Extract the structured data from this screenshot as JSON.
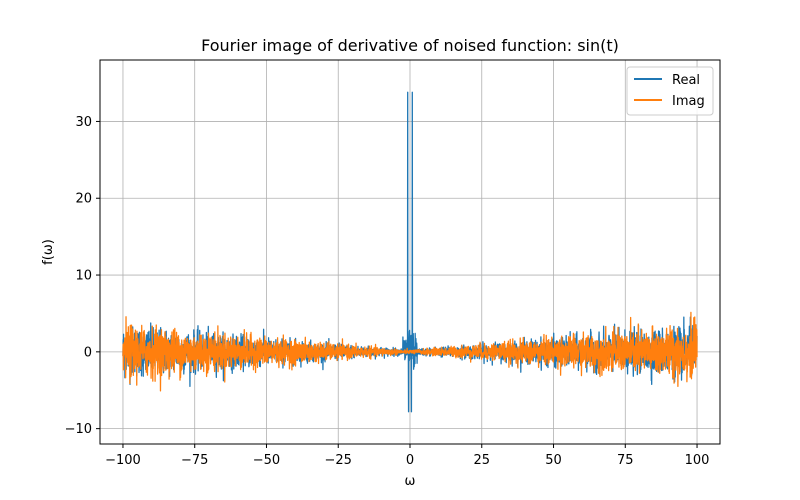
{
  "chart_data": {
    "type": "line",
    "title": "Fourier image of derivative of noised function: sin(t)",
    "xlabel": "ω",
    "ylabel": "f(ω)",
    "xlim": [
      -108,
      108
    ],
    "ylim": [
      -12,
      38
    ],
    "xticks": [
      -100,
      -75,
      -50,
      -25,
      0,
      25,
      50,
      75,
      100
    ],
    "yticks": [
      -10,
      0,
      10,
      20,
      30
    ],
    "grid": true,
    "legend_position": "top-right",
    "series": [
      {
        "name": "Real",
        "color": "#1f77b4",
        "noise_envelope": {
          "omega": [
            -100,
            -75,
            -50,
            -25,
            0,
            25,
            50,
            75,
            100
          ],
          "amplitude": [
            3.0,
            2.3,
            1.6,
            0.9,
            0.3,
            0.9,
            1.6,
            2.3,
            3.0
          ]
        },
        "peaks": [
          {
            "omega": -0.8,
            "value": 33.8
          },
          {
            "omega": 0.8,
            "value": 33.8
          },
          {
            "omega": -0.5,
            "value": -7.8
          },
          {
            "omega": 0.5,
            "value": -7.8
          }
        ]
      },
      {
        "name": "Imag",
        "color": "#ff7f0e",
        "noise_envelope": {
          "omega": [
            -100,
            -75,
            -50,
            -25,
            0,
            25,
            50,
            75,
            100
          ],
          "amplitude": [
            3.2,
            2.4,
            1.7,
            0.9,
            0.2,
            0.9,
            1.7,
            2.4,
            3.2
          ]
        },
        "peaks": []
      }
    ]
  }
}
